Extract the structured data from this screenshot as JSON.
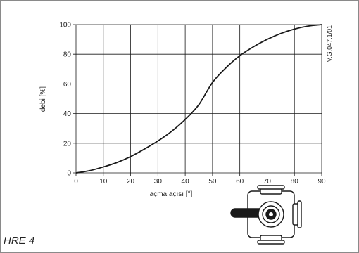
{
  "product_label": "HRE 4",
  "doc_code": "V.G.047.1/01",
  "valve_icon": "three-way-rotary-valve-icon",
  "colors": {
    "curve": "#1a1a1a",
    "grid": "#1a1a1a",
    "frame": "#8a8a8a"
  },
  "chart_data": {
    "type": "line",
    "title": "",
    "xlabel": "açma açısı  [°]",
    "ylabel": "debi  [%]",
    "xlim": [
      0,
      90
    ],
    "ylim": [
      0,
      100
    ],
    "x_ticks": [
      0,
      10,
      20,
      30,
      40,
      50,
      60,
      70,
      80,
      90
    ],
    "y_ticks": [
      0,
      20,
      40,
      60,
      80,
      100
    ],
    "grid": true,
    "series": [
      {
        "x": [
          0,
          5,
          10,
          15,
          20,
          25,
          30,
          35,
          40,
          45,
          50,
          55,
          60,
          65,
          70,
          75,
          80,
          85,
          90
        ],
        "y": [
          0,
          1.5,
          4,
          7,
          11,
          16,
          21.5,
          28,
          36,
          46,
          61,
          71,
          79,
          85,
          90,
          94,
          97,
          99,
          100
        ]
      }
    ]
  }
}
